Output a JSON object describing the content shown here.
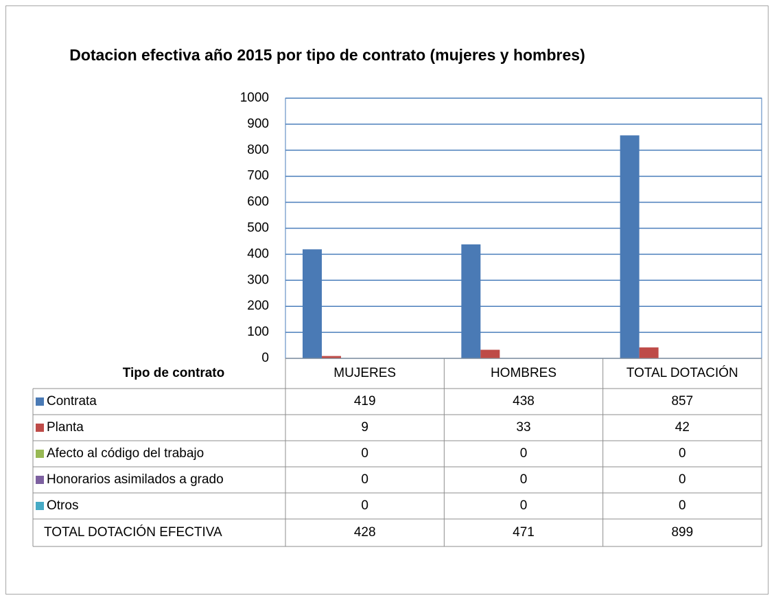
{
  "chart_data": {
    "type": "bar",
    "title": "Dotacion efectiva año 2015 por tipo de contrato (mujeres y hombres)",
    "table_label": "Tipo de contrato",
    "categories": [
      "MUJERES",
      "HOMBRES",
      "TOTAL DOTACIÓN"
    ],
    "series": [
      {
        "name": "Contrata",
        "color": "#4a7ab5",
        "values": [
          419,
          438,
          857
        ]
      },
      {
        "name": "Planta",
        "color": "#be4b48",
        "values": [
          9,
          33,
          42
        ]
      },
      {
        "name": "Afecto al código del trabajo",
        "color": "#98b954",
        "values": [
          0,
          0,
          0
        ]
      },
      {
        "name": "Honorarios asimilados a grado",
        "color": "#7d60a0",
        "values": [
          0,
          0,
          0
        ]
      },
      {
        "name": "Otros",
        "color": "#46aac5",
        "values": [
          0,
          0,
          0
        ]
      }
    ],
    "total_row": {
      "name": "TOTAL DOTACIÓN EFECTIVA",
      "values": [
        428,
        471,
        899
      ]
    },
    "ylim": [
      0,
      1000
    ],
    "yticks": [
      0,
      100,
      200,
      300,
      400,
      500,
      600,
      700,
      800,
      900,
      1000
    ],
    "grid": true
  }
}
